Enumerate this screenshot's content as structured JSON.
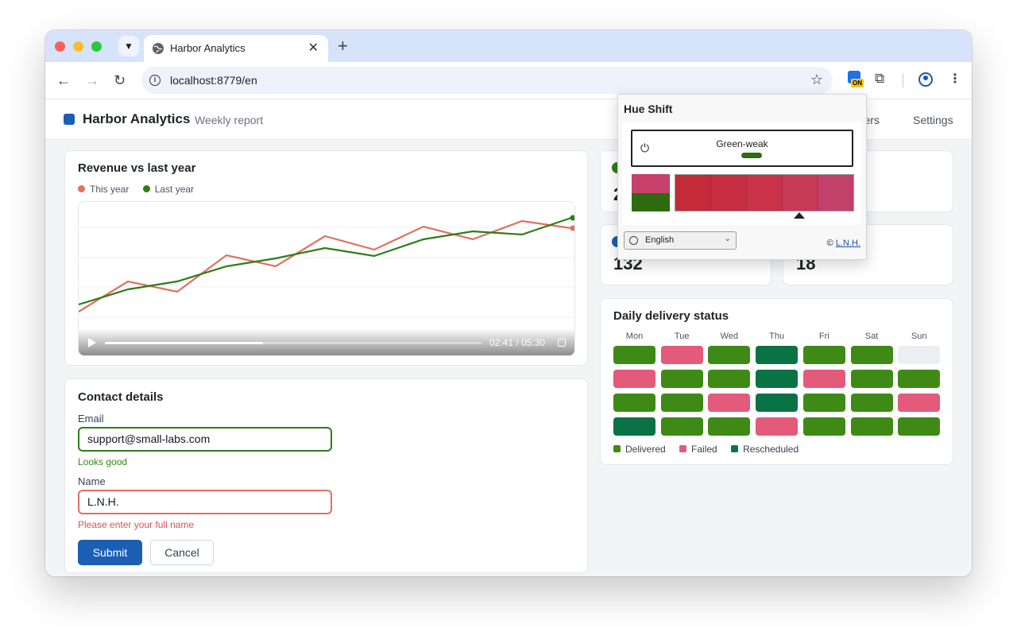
{
  "browser": {
    "tab_title": "Harbor Analytics",
    "url": "localhost:8779/en",
    "extension_badge": "ON"
  },
  "app": {
    "brand": "Harbor Analytics",
    "subtitle": "Weekly report",
    "nav": [
      "Orders",
      "Settings"
    ],
    "nav_visible": [
      "rders",
      "Settings"
    ]
  },
  "revenue": {
    "title": "Revenue vs last year",
    "video_time": "02:41 / 05:30",
    "video_progress": 0.42
  },
  "chart_data": {
    "type": "line",
    "title": "Revenue vs last year",
    "x": [
      1,
      2,
      3,
      4,
      5,
      6,
      7,
      8,
      9,
      10,
      11,
      12
    ],
    "series": [
      {
        "name": "This year",
        "color": "#e07060",
        "values": [
          15,
          38,
          30,
          58,
          50,
          73,
          64,
          82,
          71,
          86,
          82,
          null
        ]
      },
      {
        "name": "Last year",
        "color": "#2e7d1a",
        "values": [
          20,
          33,
          40,
          52,
          60,
          68,
          62,
          76,
          80,
          78,
          90,
          null
        ]
      }
    ],
    "legend_position": "top-left",
    "grid": true
  },
  "contact": {
    "title": "Contact details",
    "email_label": "Email",
    "email_value": "support@small-labs.com",
    "email_hint": "Looks good",
    "name_label": "Name",
    "name_value": "L.N.H.",
    "name_hint": "Please enter your full name",
    "submit_label": "Submit",
    "cancel_label": "Cancel"
  },
  "stats": [
    {
      "value": "2",
      "color": "#2e7d1a"
    },
    {
      "value": "",
      "color": ""
    },
    {
      "value": "132",
      "color": "#1a5fb4"
    },
    {
      "value": "18",
      "color": ""
    }
  ],
  "delivery": {
    "title": "Daily delivery status",
    "days": [
      "Mon",
      "Tue",
      "Wed",
      "Thu",
      "Fri",
      "Sat",
      "Sun"
    ],
    "rows": [
      [
        "Delivered",
        "Failed",
        "Delivered",
        "Rescheduled",
        "Delivered",
        "Delivered",
        "Empty"
      ],
      [
        "Failed",
        "Delivered",
        "Delivered",
        "Rescheduled",
        "Failed",
        "Delivered",
        "Delivered"
      ],
      [
        "Delivered",
        "Delivered",
        "Failed",
        "Rescheduled",
        "Delivered",
        "Delivered",
        "Failed"
      ],
      [
        "Rescheduled",
        "Delivered",
        "Delivered",
        "Failed",
        "Delivered",
        "Delivered",
        "Delivered"
      ]
    ],
    "colors": {
      "Delivered": "#3f8a16",
      "Failed": "#e35a7a",
      "Rescheduled": "#0a7346",
      "Empty": "#eceef1"
    },
    "legend": [
      "Delivered",
      "Failed",
      "Rescheduled"
    ]
  },
  "popup": {
    "title": "Hue Shift",
    "mode": "Green-weak",
    "strip_colors": [
      "#c42a38",
      "#c82e42",
      "#c93249",
      "#c63a56",
      "#c2406a"
    ],
    "language": "English",
    "copyright_symbol": "©",
    "copyright_link": "L.N.H."
  }
}
